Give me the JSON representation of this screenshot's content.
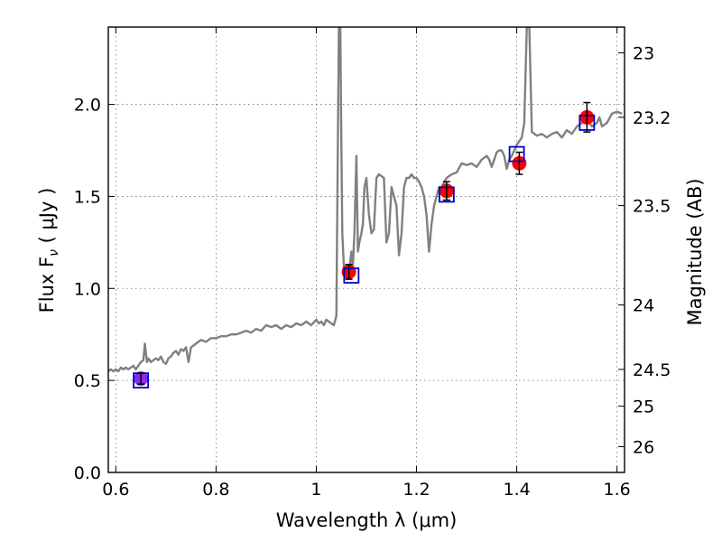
{
  "chart_data": {
    "type": "scatter",
    "title": "",
    "xlabel": "Wavelength  λ (μm)",
    "ylabel": "Flux  F",
    "ylabel_sub": "ν",
    "ylabel_unit": " ( μJy )",
    "ylabel_right": "Magnitude (AB)",
    "xlim": [
      0.585,
      1.615
    ],
    "ylim": [
      0.0,
      2.42
    ],
    "grid": true,
    "x_ticks": [
      0.6,
      0.8,
      1.0,
      1.2,
      1.4,
      1.6
    ],
    "x_tick_labels": [
      "0.6",
      "0.8",
      "1",
      "1.2",
      "1.4",
      "1.6"
    ],
    "y_ticks": [
      0.0,
      0.5,
      1.0,
      1.5,
      2.0
    ],
    "y_tick_labels": [
      "0.0",
      "0.5",
      "1.0",
      "1.5",
      "2.0"
    ],
    "right_ticks": [
      {
        "flux": 2.28,
        "label": "23"
      },
      {
        "flux": 1.93,
        "label": "23.2"
      },
      {
        "flux": 1.45,
        "label": "23.5"
      },
      {
        "flux": 0.91,
        "label": "24"
      },
      {
        "flux": 0.56,
        "label": "24.5"
      },
      {
        "flux": 0.36,
        "label": "25"
      },
      {
        "flux": 0.14,
        "label": "26"
      }
    ],
    "colors": {
      "model": "#808080",
      "observed": "#ff0000",
      "model_photometry": "#0000cc",
      "overlap": "#8a2be2",
      "errorbar": "#000000"
    },
    "series": [
      {
        "name": "model_spectrum",
        "kind": "line",
        "x": [
          0.585,
          0.59,
          0.595,
          0.6,
          0.605,
          0.61,
          0.615,
          0.62,
          0.625,
          0.63,
          0.635,
          0.64,
          0.645,
          0.65,
          0.655,
          0.658,
          0.662,
          0.665,
          0.67,
          0.675,
          0.68,
          0.685,
          0.69,
          0.695,
          0.7,
          0.705,
          0.71,
          0.715,
          0.72,
          0.725,
          0.73,
          0.735,
          0.74,
          0.745,
          0.75,
          0.76,
          0.77,
          0.78,
          0.79,
          0.8,
          0.81,
          0.82,
          0.83,
          0.84,
          0.85,
          0.86,
          0.87,
          0.88,
          0.89,
          0.9,
          0.91,
          0.92,
          0.93,
          0.94,
          0.95,
          0.96,
          0.97,
          0.98,
          0.99,
          1.0,
          1.005,
          1.01,
          1.015,
          1.02,
          1.025,
          1.03,
          1.035,
          1.04,
          1.045,
          1.048,
          1.05,
          1.052,
          1.055,
          1.058,
          1.06,
          1.063,
          1.066,
          1.07,
          1.073,
          1.076,
          1.08,
          1.083,
          1.086,
          1.09,
          1.093,
          1.096,
          1.1,
          1.105,
          1.11,
          1.115,
          1.12,
          1.125,
          1.13,
          1.135,
          1.14,
          1.145,
          1.15,
          1.155,
          1.16,
          1.165,
          1.17,
          1.175,
          1.18,
          1.185,
          1.19,
          1.195,
          1.2,
          1.205,
          1.21,
          1.215,
          1.22,
          1.225,
          1.23,
          1.235,
          1.24,
          1.245,
          1.25,
          1.26,
          1.27,
          1.28,
          1.29,
          1.3,
          1.31,
          1.32,
          1.33,
          1.34,
          1.345,
          1.35,
          1.355,
          1.36,
          1.365,
          1.37,
          1.375,
          1.38,
          1.385,
          1.39,
          1.395,
          1.4,
          1.405,
          1.41,
          1.415,
          1.42,
          1.425,
          1.43,
          1.44,
          1.45,
          1.46,
          1.47,
          1.48,
          1.49,
          1.5,
          1.51,
          1.52,
          1.53,
          1.54,
          1.55,
          1.56,
          1.565,
          1.57,
          1.58,
          1.59,
          1.6,
          1.61
        ],
        "y": [
          0.55,
          0.56,
          0.55,
          0.56,
          0.55,
          0.57,
          0.56,
          0.57,
          0.56,
          0.57,
          0.58,
          0.56,
          0.58,
          0.6,
          0.61,
          0.7,
          0.6,
          0.62,
          0.6,
          0.61,
          0.62,
          0.61,
          0.63,
          0.6,
          0.59,
          0.62,
          0.63,
          0.65,
          0.66,
          0.64,
          0.67,
          0.66,
          0.68,
          0.6,
          0.68,
          0.7,
          0.72,
          0.71,
          0.73,
          0.73,
          0.74,
          0.74,
          0.75,
          0.75,
          0.76,
          0.77,
          0.76,
          0.78,
          0.77,
          0.8,
          0.79,
          0.8,
          0.78,
          0.8,
          0.79,
          0.81,
          0.8,
          0.82,
          0.8,
          0.83,
          0.81,
          0.82,
          0.8,
          0.83,
          0.82,
          0.81,
          0.8,
          0.85,
          2.42,
          2.42,
          1.8,
          1.3,
          1.12,
          1.06,
          1.1,
          1.05,
          1.1,
          1.2,
          1.12,
          1.3,
          1.72,
          1.2,
          1.25,
          1.3,
          1.35,
          1.55,
          1.6,
          1.4,
          1.3,
          1.32,
          1.6,
          1.62,
          1.61,
          1.6,
          1.25,
          1.3,
          1.55,
          1.5,
          1.45,
          1.18,
          1.3,
          1.55,
          1.6,
          1.6,
          1.62,
          1.6,
          1.6,
          1.58,
          1.55,
          1.5,
          1.4,
          1.2,
          1.35,
          1.45,
          1.5,
          1.55,
          1.55,
          1.6,
          1.62,
          1.63,
          1.68,
          1.67,
          1.68,
          1.66,
          1.7,
          1.72,
          1.7,
          1.66,
          1.7,
          1.74,
          1.75,
          1.75,
          1.72,
          1.65,
          1.7,
          1.72,
          1.75,
          1.78,
          1.8,
          1.82,
          1.9,
          2.42,
          2.42,
          1.85,
          1.83,
          1.84,
          1.82,
          1.84,
          1.85,
          1.82,
          1.86,
          1.84,
          1.88,
          1.9,
          1.92,
          1.88,
          1.9,
          1.93,
          1.88,
          1.9,
          1.95,
          1.96,
          1.95
        ]
      },
      {
        "name": "observed",
        "kind": "errorbar",
        "x": [
          0.65,
          1.065,
          1.26,
          1.405,
          1.54
        ],
        "y": [
          0.51,
          1.09,
          1.53,
          1.68,
          1.93
        ],
        "yerr": [
          0.03,
          0.04,
          0.05,
          0.06,
          0.08
        ]
      },
      {
        "name": "model_photometry",
        "kind": "square",
        "x": [
          0.65,
          1.07,
          1.26,
          1.4,
          1.54
        ],
        "y": [
          0.5,
          1.07,
          1.51,
          1.73,
          1.9
        ]
      }
    ]
  }
}
